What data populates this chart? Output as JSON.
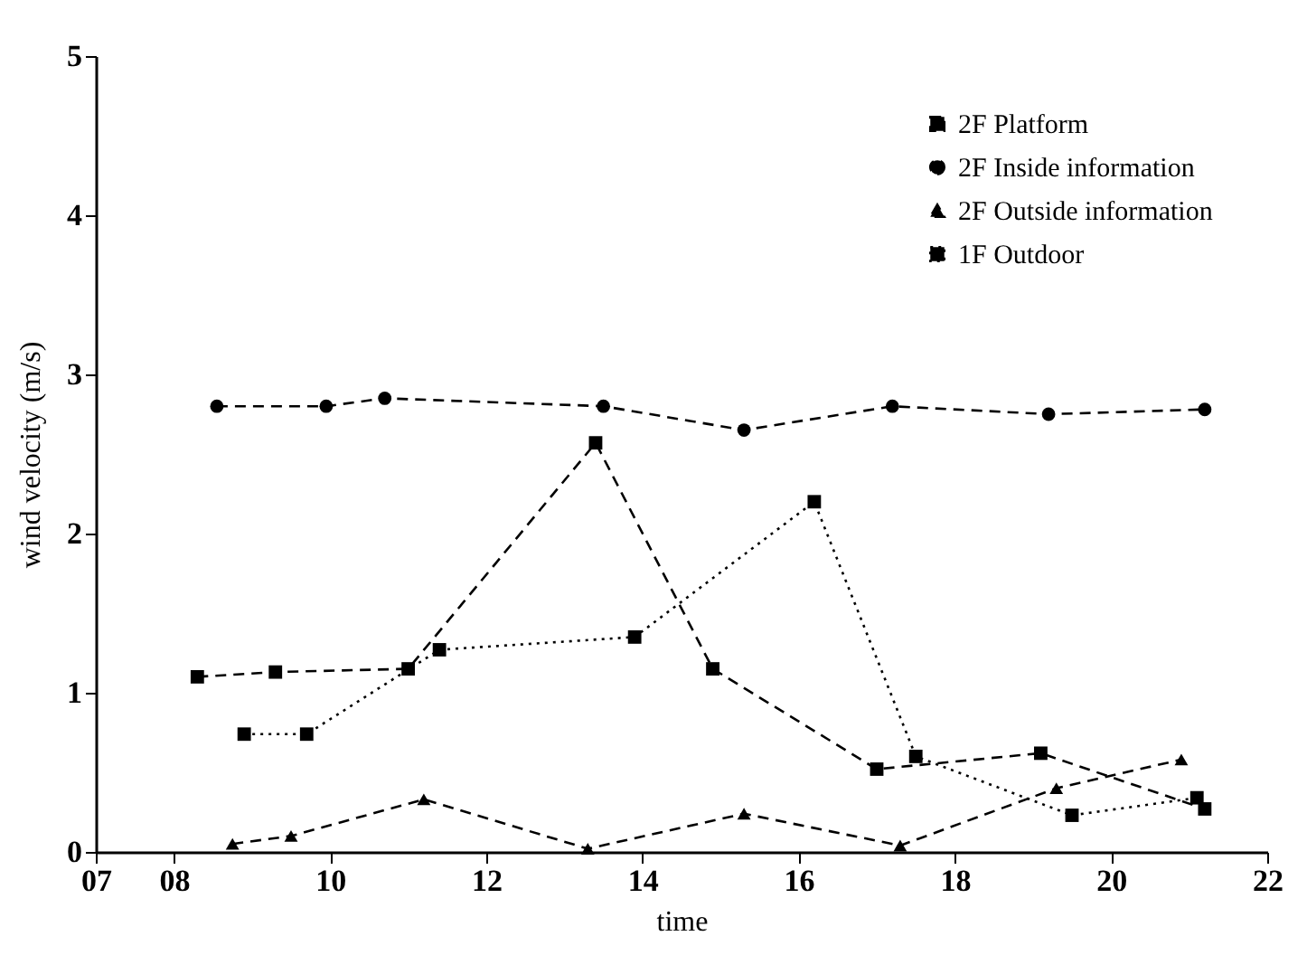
{
  "chart_data": {
    "type": "line",
    "xlabel": "time",
    "ylabel": "wind velocity (m/s)",
    "xlim": [
      7,
      22
    ],
    "xticks": [
      {
        "value": 7,
        "label": "07"
      },
      {
        "value": 8,
        "label": "08"
      },
      10,
      12,
      14,
      16,
      18,
      20,
      22
    ],
    "ylim": [
      0,
      5
    ],
    "yticks": [
      0,
      1,
      2,
      3,
      4,
      5
    ],
    "grid": false,
    "legend": "top right",
    "series": [
      {
        "name": "2F Platform",
        "color": "#000000",
        "marker": "square",
        "line_style": "dashed",
        "x": [
          8.3,
          9.3,
          11.0,
          13.4,
          14.9,
          17.0,
          19.1,
          21.2
        ],
        "values": [
          1.1,
          1.13,
          1.15,
          2.57,
          1.15,
          0.52,
          0.62,
          0.27
        ]
      },
      {
        "name": "2F Inside information",
        "color": "#000000",
        "marker": "circle",
        "line_style": "dashed",
        "x": [
          8.55,
          9.95,
          10.7,
          13.5,
          15.3,
          17.2,
          19.2,
          21.2
        ],
        "values": [
          2.8,
          2.8,
          2.85,
          2.8,
          2.65,
          2.8,
          2.75,
          2.78
        ]
      },
      {
        "name": "2F Outside information",
        "color": "#000000",
        "marker": "triangle",
        "line_style": "dashed",
        "x": [
          8.75,
          9.5,
          11.2,
          13.3,
          15.3,
          17.3,
          19.3,
          20.9
        ],
        "values": [
          0.05,
          0.1,
          0.33,
          0.02,
          0.24,
          0.04,
          0.4,
          0.58
        ]
      },
      {
        "name": "1F Outdoor",
        "color": "#000000",
        "marker": "square",
        "line_style": "dotted",
        "x": [
          8.9,
          9.7,
          11.4,
          13.9,
          16.2,
          17.5,
          19.5,
          21.1
        ],
        "values": [
          0.74,
          0.74,
          1.27,
          1.35,
          2.2,
          0.6,
          0.23,
          0.34
        ]
      }
    ]
  }
}
